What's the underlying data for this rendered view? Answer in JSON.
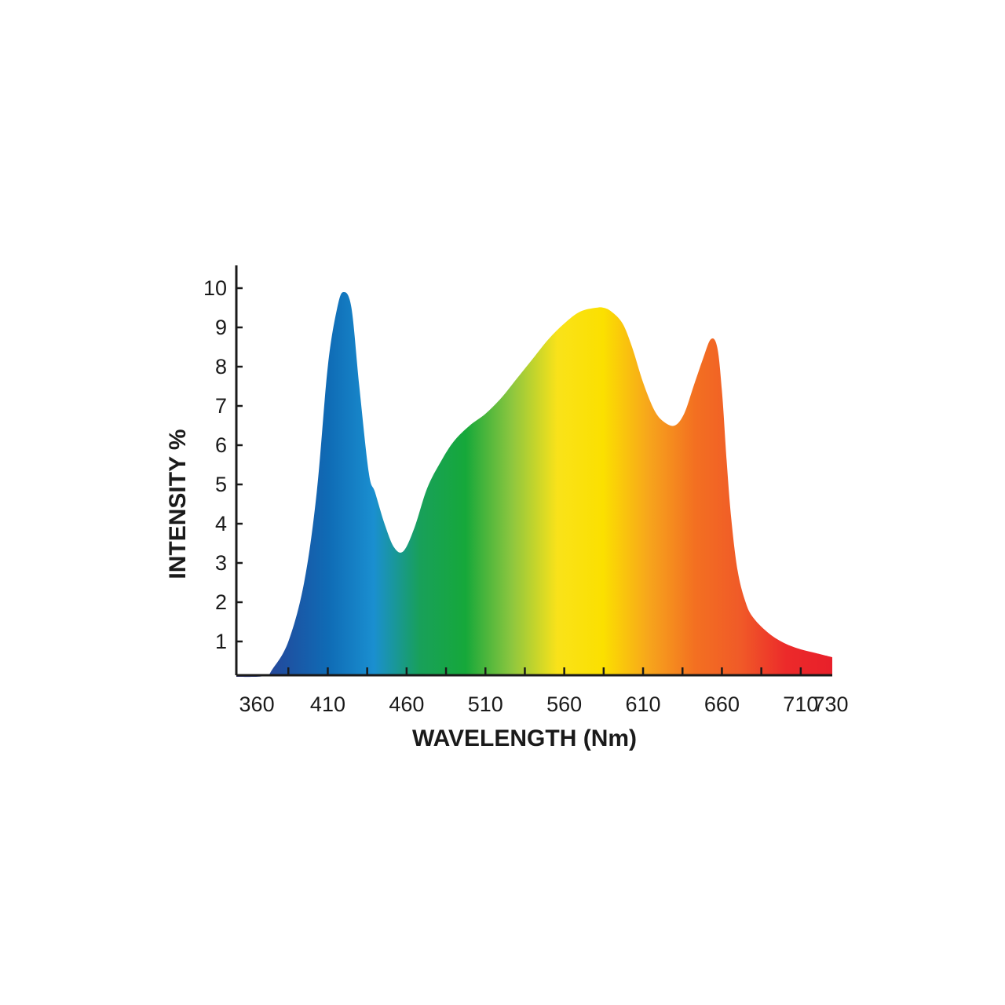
{
  "chart_data": {
    "type": "area",
    "title": "",
    "xlabel": "WAVELENGTH (Nm)",
    "ylabel": "INTENSITY %",
    "xlim": [
      352,
      730
    ],
    "ylim": [
      0.1,
      10.5
    ],
    "x_ticks": [
      360,
      410,
      460,
      510,
      560,
      610,
      660,
      710,
      730
    ],
    "y_ticks": [
      1,
      2,
      3,
      4,
      5,
      6,
      7,
      8,
      9,
      10
    ],
    "grid": false,
    "fill": "visible-spectrum gradient",
    "spectrum_colors": [
      "#3a3a8c",
      "#1f4fa0",
      "#0f6bb5",
      "#1a8fd0",
      "#18a05a",
      "#16a83a",
      "#8cc63f",
      "#f9e21a",
      "#fbe000",
      "#f7a51c",
      "#f37021",
      "#f05a28",
      "#ec2a2a",
      "#e8202a"
    ],
    "series": [
      {
        "x": [
          352,
          370,
          375,
          385,
          395,
          403,
          410,
          416,
          420,
          425,
          430,
          436,
          440,
          446,
          452,
          458,
          465,
          473,
          482,
          490,
          500,
          510,
          520,
          530,
          540,
          550,
          560,
          570,
          580,
          585,
          590,
          597,
          603,
          610,
          617,
          623,
          630,
          636,
          642,
          648,
          653,
          657,
          660,
          663,
          666,
          670,
          675,
          680,
          690,
          700,
          710,
          720,
          730
        ],
        "y": [
          0.1,
          0.12,
          0.3,
          1.0,
          2.5,
          4.8,
          8.0,
          9.5,
          9.9,
          9.5,
          7.5,
          5.3,
          4.8,
          4.0,
          3.4,
          3.3,
          3.9,
          4.9,
          5.6,
          6.1,
          6.5,
          6.8,
          7.2,
          7.7,
          8.2,
          8.7,
          9.1,
          9.4,
          9.5,
          9.5,
          9.4,
          9.1,
          8.5,
          7.6,
          6.9,
          6.6,
          6.5,
          6.8,
          7.5,
          8.2,
          8.7,
          8.5,
          7.4,
          5.6,
          4.1,
          2.8,
          2.0,
          1.6,
          1.2,
          0.95,
          0.8,
          0.7,
          0.6
        ]
      }
    ]
  }
}
